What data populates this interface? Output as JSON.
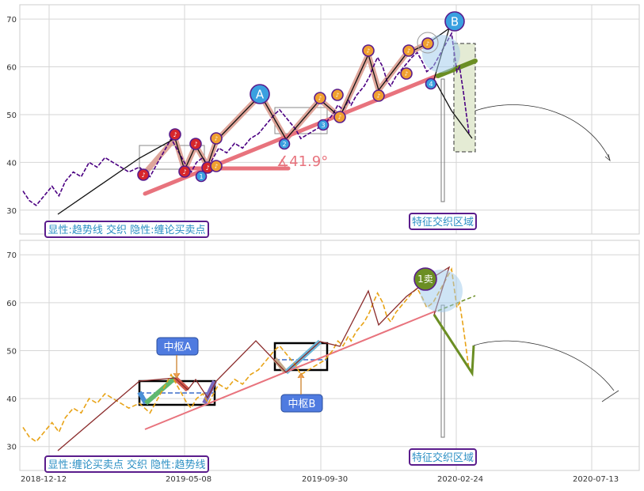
{
  "chart_data": [
    {
      "type": "line",
      "panel": "top",
      "ylim": [
        25,
        73
      ],
      "yticks": [
        30,
        40,
        50,
        60,
        70
      ],
      "grid": true,
      "series": [
        {
          "style": "price-dotted",
          "color": "#4b0082",
          "values": [
            [
              0.0,
              34
            ],
            [
              1.2,
              32
            ],
            [
              2.5,
              31
            ],
            [
              4.0,
              33
            ],
            [
              5.5,
              35
            ],
            [
              6.8,
              33
            ],
            [
              8.0,
              36
            ],
            [
              9.5,
              38
            ],
            [
              11.0,
              37
            ],
            [
              12.5,
              40
            ],
            [
              14.0,
              39
            ],
            [
              15.5,
              41
            ],
            [
              17.0,
              40
            ],
            [
              18.5,
              39
            ],
            [
              20.0,
              38
            ],
            [
              22.0,
              39
            ],
            [
              24.0,
              37
            ],
            [
              25.5,
              40
            ],
            [
              27.0,
              43
            ],
            [
              28.0,
              45
            ],
            [
              29.0,
              43
            ],
            [
              30.0,
              41
            ],
            [
              31.0,
              39
            ],
            [
              31.8,
              38
            ],
            [
              32.8,
              40
            ],
            [
              34.0,
              41
            ],
            [
              35.0,
              39
            ],
            [
              36.0,
              41
            ],
            [
              37.0,
              43
            ],
            [
              38.5,
              42
            ],
            [
              40.0,
              44
            ],
            [
              41.5,
              43
            ],
            [
              43.0,
              45
            ],
            [
              44.5,
              46
            ],
            [
              46.0,
              48
            ],
            [
              47.5,
              50
            ],
            [
              48.5,
              51
            ],
            [
              50.0,
              49
            ],
            [
              51.5,
              47
            ],
            [
              52.5,
              45
            ],
            [
              54.0,
              46
            ],
            [
              55.5,
              47
            ],
            [
              57.0,
              48
            ],
            [
              58.5,
              50
            ],
            [
              59.5,
              52
            ],
            [
              60.5,
              51
            ],
            [
              61.5,
              53
            ],
            [
              62.0,
              52
            ],
            [
              63.0,
              54
            ],
            [
              64.5,
              56
            ],
            [
              65.5,
              58
            ],
            [
              66.2,
              60
            ],
            [
              67.0,
              62
            ],
            [
              68.0,
              60
            ],
            [
              68.8,
              57
            ],
            [
              69.5,
              56
            ],
            [
              70.5,
              58
            ],
            [
              72.0,
              60
            ],
            [
              73.5,
              62
            ],
            [
              74.5,
              63
            ],
            [
              75.5,
              61
            ],
            [
              76.3,
              59
            ],
            [
              77.5,
              60
            ],
            [
              78.5,
              62
            ],
            [
              79.5,
              64
            ],
            [
              80.5,
              66
            ],
            [
              81.0,
              67
            ],
            [
              81.5,
              63
            ],
            [
              82.0,
              59
            ],
            [
              82.5,
              60
            ],
            [
              83.2,
              55
            ],
            [
              83.8,
              50
            ],
            [
              84.3,
              46
            ]
          ]
        }
      ],
      "annotations": {
        "points": [
          {
            "label": "A",
            "x": 47.5,
            "y": 54.5
          },
          {
            "label": "B",
            "x": 80.5,
            "y": 70
          }
        ],
        "buy_points": [
          {
            "label": "1",
            "x": 31.2,
            "y": 37.5
          },
          {
            "label": "2",
            "x": 51.0,
            "y": 44
          },
          {
            "label": "3",
            "x": 59.0,
            "y": 48
          },
          {
            "label": "4",
            "x": 76.1,
            "y": 56.5
          }
        ],
        "angle_text": "∡41.9°",
        "region_label": "特征交织区域",
        "legend": "显性:趋势线 交织 隐性:缠论买卖点"
      }
    },
    {
      "type": "line",
      "panel": "bottom",
      "ylim": [
        25,
        73
      ],
      "yticks": [
        30,
        40,
        50,
        60,
        70
      ],
      "xticks": [
        "2018-12-12",
        "2019-05-08",
        "2019-09-30",
        "2020-02-24",
        "2020-07-13"
      ],
      "grid": true,
      "series": [
        {
          "style": "price-dashed",
          "color": "#e8a317",
          "values": [
            [
              0.0,
              34
            ],
            [
              1.2,
              32
            ],
            [
              2.5,
              31
            ],
            [
              4.0,
              33
            ],
            [
              5.5,
              35
            ],
            [
              6.8,
              33
            ],
            [
              8.0,
              36
            ],
            [
              9.5,
              38
            ],
            [
              11.0,
              37
            ],
            [
              12.5,
              40
            ],
            [
              14.0,
              39
            ],
            [
              15.5,
              41
            ],
            [
              17.0,
              40
            ],
            [
              18.5,
              39
            ],
            [
              20.0,
              38
            ],
            [
              22.0,
              39
            ],
            [
              24.0,
              37
            ],
            [
              25.5,
              40
            ],
            [
              27.0,
              43
            ],
            [
              28.0,
              45
            ],
            [
              29.0,
              43
            ],
            [
              30.0,
              41
            ],
            [
              31.0,
              39
            ],
            [
              31.8,
              38
            ],
            [
              32.8,
              40
            ],
            [
              34.0,
              41
            ],
            [
              35.0,
              39
            ],
            [
              36.0,
              41
            ],
            [
              37.0,
              43
            ],
            [
              38.5,
              42
            ],
            [
              40.0,
              44
            ],
            [
              41.5,
              43
            ],
            [
              43.0,
              45
            ],
            [
              44.5,
              46
            ],
            [
              46.0,
              48
            ],
            [
              47.5,
              50
            ],
            [
              48.5,
              51
            ],
            [
              50.0,
              49
            ],
            [
              51.5,
              47
            ],
            [
              52.5,
              45
            ],
            [
              54.0,
              46
            ],
            [
              55.5,
              47
            ],
            [
              57.0,
              48
            ],
            [
              58.5,
              50
            ],
            [
              59.5,
              52
            ],
            [
              60.5,
              51
            ],
            [
              61.5,
              53
            ],
            [
              62.0,
              52
            ],
            [
              63.0,
              54
            ],
            [
              64.5,
              56
            ],
            [
              65.5,
              58
            ],
            [
              66.2,
              60
            ],
            [
              67.0,
              62
            ],
            [
              68.0,
              60
            ],
            [
              68.8,
              57
            ],
            [
              69.5,
              56
            ],
            [
              70.5,
              58
            ],
            [
              72.0,
              60
            ],
            [
              73.5,
              62
            ],
            [
              74.5,
              63
            ],
            [
              75.5,
              61
            ],
            [
              76.3,
              59
            ],
            [
              77.5,
              60
            ],
            [
              78.5,
              62
            ],
            [
              79.5,
              64
            ],
            [
              80.5,
              66
            ],
            [
              81.0,
              67
            ],
            [
              81.5,
              63
            ],
            [
              82.0,
              59
            ],
            [
              82.5,
              60
            ],
            [
              83.2,
              55
            ],
            [
              83.8,
              50
            ],
            [
              84.3,
              46
            ]
          ]
        }
      ],
      "annotations": {
        "sell_point": {
          "label": "1卖",
          "x": 77.0,
          "y": 65
        },
        "pivot_a": "中枢A",
        "pivot_b": "中枢B",
        "region_label": "特征交织区域",
        "legend": "显性:缠论买卖点 交织 隐性:趋势线"
      }
    }
  ],
  "colors": {
    "trend_red": "#e8737d",
    "pivot_box": "#000000",
    "callout_fill": "#4f7be0",
    "label_border": "#5a1c8c",
    "label_text": "#2b8fc4",
    "bubble_blue": "#3aa0e0",
    "buy_red": "#d7262b",
    "buy_orange": "#f0a030",
    "sell_olive": "#6b8e23"
  }
}
